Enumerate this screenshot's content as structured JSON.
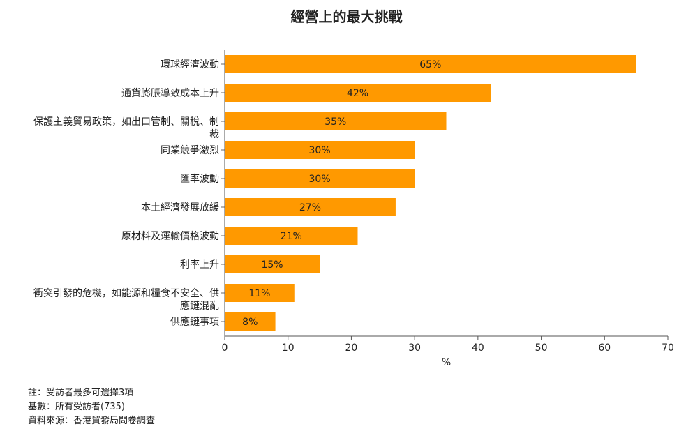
{
  "chart_data": {
    "type": "bar",
    "orientation": "horizontal",
    "title": "經營上的最大挑戰",
    "xlabel": "%",
    "ylabel": "",
    "xlim": [
      0,
      70
    ],
    "xticks": [
      0,
      10,
      20,
      30,
      40,
      50,
      60,
      70
    ],
    "categories": [
      [
        "環球經濟波動"
      ],
      [
        "通貨膨脹導致成本上升"
      ],
      [
        "保護主義貿易政策，如出口管制、關稅、制",
        "裁"
      ],
      [
        "同業競爭激烈"
      ],
      [
        "匯率波動"
      ],
      [
        "本土經濟發展放緩"
      ],
      [
        "原材料及運輸價格波動"
      ],
      [
        "利率上升"
      ],
      [
        "衝突引發的危機，如能源和糧食不安全、供",
        "應鏈混亂"
      ],
      [
        "供應鏈事項"
      ]
    ],
    "values": [
      65,
      42,
      35,
      30,
      30,
      27,
      21,
      15,
      11,
      8
    ],
    "data_labels": [
      "65%",
      "42%",
      "35%",
      "30%",
      "30%",
      "27%",
      "21%",
      "15%",
      "11%",
      "8%"
    ],
    "bar_color": "#FF9900",
    "grid": false,
    "legend": "none"
  },
  "notes": [
    "註：受訪者最多可選擇3項",
    "基數：所有受訪者(735)",
    "資料來源：香港貿發局問卷調查"
  ]
}
